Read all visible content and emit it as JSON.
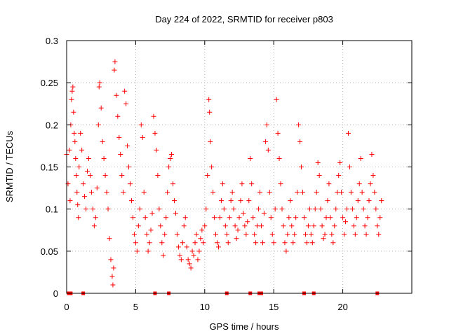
{
  "chart_data": {
    "type": "scatter",
    "title": "Day 224 of 2022, SRMTID for receiver p803",
    "xlabel": "GPS time / hours",
    "ylabel": "SRMTID / TECUs",
    "xlim": [
      0,
      25
    ],
    "ylim": [
      0,
      0.3
    ],
    "xticks": [
      0,
      5,
      10,
      15,
      20
    ],
    "xtick_labels": [
      "0",
      "5",
      "10",
      "15",
      "20"
    ],
    "yticks": [
      0,
      0.05,
      0.1,
      0.15,
      0.2,
      0.25,
      0.3
    ],
    "ytick_labels": [
      "0",
      "0.05",
      "0.1",
      "0.15",
      "0.2",
      "0.25",
      "0.3"
    ],
    "grid": true,
    "marker": "+",
    "series_color": "#ff0000",
    "series": [
      {
        "name": "SRMTID",
        "points": [
          [
            0.0,
            0.165
          ],
          [
            0.1,
            0.13
          ],
          [
            0.2,
            0.17
          ],
          [
            0.25,
            0.11
          ],
          [
            0.3,
            0.2
          ],
          [
            0.35,
            0.23
          ],
          [
            0.4,
            0.24
          ],
          [
            0.45,
            0.245
          ],
          [
            0.5,
            0.215
          ],
          [
            0.55,
            0.19
          ],
          [
            0.6,
            0.18
          ],
          [
            0.65,
            0.16
          ],
          [
            0.7,
            0.14
          ],
          [
            0.75,
            0.12
          ],
          [
            0.8,
            0.105
          ],
          [
            0.85,
            0.09
          ],
          [
            0.9,
            0.15
          ],
          [
            1.0,
            0.19
          ],
          [
            1.1,
            0.17
          ],
          [
            1.2,
            0.13
          ],
          [
            1.3,
            0.115
          ],
          [
            1.4,
            0.1
          ],
          [
            1.5,
            0.145
          ],
          [
            1.6,
            0.16
          ],
          [
            1.7,
            0.14
          ],
          [
            1.8,
            0.12
          ],
          [
            1.9,
            0.1
          ],
          [
            2.0,
            0.08
          ],
          [
            2.1,
            0.09
          ],
          [
            2.2,
            0.125
          ],
          [
            2.3,
            0.2
          ],
          [
            2.35,
            0.245
          ],
          [
            2.4,
            0.25
          ],
          [
            2.5,
            0.22
          ],
          [
            2.6,
            0.18
          ],
          [
            2.7,
            0.16
          ],
          [
            2.8,
            0.14
          ],
          [
            2.9,
            0.12
          ],
          [
            3.0,
            0.1
          ],
          [
            3.1,
            0.065
          ],
          [
            3.2,
            0.04
          ],
          [
            3.3,
            0.02
          ],
          [
            3.35,
            0.01
          ],
          [
            3.4,
            0.03
          ],
          [
            3.45,
            0.265
          ],
          [
            3.5,
            0.275
          ],
          [
            3.6,
            0.235
          ],
          [
            3.7,
            0.21
          ],
          [
            3.8,
            0.185
          ],
          [
            3.9,
            0.165
          ],
          [
            4.0,
            0.14
          ],
          [
            4.1,
            0.12
          ],
          [
            4.2,
            0.24
          ],
          [
            4.3,
            0.225
          ],
          [
            4.4,
            0.175
          ],
          [
            4.5,
            0.15
          ],
          [
            4.6,
            0.13
          ],
          [
            4.7,
            0.11
          ],
          [
            4.8,
            0.09
          ],
          [
            4.9,
            0.07
          ],
          [
            5.0,
            0.06
          ],
          [
            5.1,
            0.05
          ],
          [
            5.2,
            0.08
          ],
          [
            5.3,
            0.1
          ],
          [
            5.4,
            0.2
          ],
          [
            5.5,
            0.185
          ],
          [
            5.6,
            0.12
          ],
          [
            5.7,
            0.09
          ],
          [
            5.8,
            0.07
          ],
          [
            5.9,
            0.05
          ],
          [
            6.0,
            0.06
          ],
          [
            6.1,
            0.075
          ],
          [
            6.2,
            0.095
          ],
          [
            6.3,
            0.21
          ],
          [
            6.4,
            0.19
          ],
          [
            6.5,
            0.17
          ],
          [
            6.6,
            0.14
          ],
          [
            6.7,
            0.1
          ],
          [
            6.8,
            0.08
          ],
          [
            6.9,
            0.06
          ],
          [
            7.0,
            0.045
          ],
          [
            7.1,
            0.07
          ],
          [
            7.2,
            0.09
          ],
          [
            7.3,
            0.12
          ],
          [
            7.4,
            0.15
          ],
          [
            7.5,
            0.16
          ],
          [
            7.6,
            0.165
          ],
          [
            7.7,
            0.13
          ],
          [
            7.8,
            0.11
          ],
          [
            7.9,
            0.095
          ],
          [
            8.0,
            0.07
          ],
          [
            8.1,
            0.055
          ],
          [
            8.2,
            0.045
          ],
          [
            8.3,
            0.04
          ],
          [
            8.4,
            0.06
          ],
          [
            8.5,
            0.08
          ],
          [
            8.6,
            0.09
          ],
          [
            8.7,
            0.055
          ],
          [
            8.8,
            0.04
          ],
          [
            8.9,
            0.035
          ],
          [
            9.0,
            0.03
          ],
          [
            9.1,
            0.05
          ],
          [
            9.2,
            0.045
          ],
          [
            9.3,
            0.06
          ],
          [
            9.4,
            0.07
          ],
          [
            9.5,
            0.04
          ],
          [
            9.6,
            0.05
          ],
          [
            9.7,
            0.065
          ],
          [
            9.8,
            0.075
          ],
          [
            9.9,
            0.06
          ],
          [
            10.0,
            0.08
          ],
          [
            10.1,
            0.1
          ],
          [
            10.2,
            0.14
          ],
          [
            10.3,
            0.23
          ],
          [
            10.35,
            0.215
          ],
          [
            10.4,
            0.18
          ],
          [
            10.5,
            0.15
          ],
          [
            10.6,
            0.12
          ],
          [
            10.7,
            0.09
          ],
          [
            10.8,
            0.07
          ],
          [
            10.9,
            0.06
          ],
          [
            11.0,
            0.055
          ],
          [
            11.1,
            0.09
          ],
          [
            11.2,
            0.11
          ],
          [
            11.3,
            0.13
          ],
          [
            11.4,
            0.1
          ],
          [
            11.5,
            0.08
          ],
          [
            11.6,
            0.07
          ],
          [
            11.7,
            0.06
          ],
          [
            11.8,
            0.09
          ],
          [
            11.9,
            0.11
          ],
          [
            12.0,
            0.12
          ],
          [
            12.1,
            0.1
          ],
          [
            12.2,
            0.08
          ],
          [
            12.3,
            0.065
          ],
          [
            12.4,
            0.075
          ],
          [
            12.5,
            0.09
          ],
          [
            12.6,
            0.11
          ],
          [
            12.7,
            0.13
          ],
          [
            12.8,
            0.095
          ],
          [
            12.9,
            0.08
          ],
          [
            13.0,
            0.07
          ],
          [
            13.1,
            0.085
          ],
          [
            13.2,
            0.11
          ],
          [
            13.3,
            0.16
          ],
          [
            13.4,
            0.13
          ],
          [
            13.5,
            0.09
          ],
          [
            13.6,
            0.07
          ],
          [
            13.7,
            0.06
          ],
          [
            13.8,
            0.08
          ],
          [
            13.9,
            0.1
          ],
          [
            14.0,
            0.12
          ],
          [
            14.1,
            0.08
          ],
          [
            14.2,
            0.06
          ],
          [
            14.3,
            0.095
          ],
          [
            14.4,
            0.18
          ],
          [
            14.5,
            0.2
          ],
          [
            14.6,
            0.17
          ],
          [
            14.7,
            0.12
          ],
          [
            14.8,
            0.09
          ],
          [
            14.9,
            0.07
          ],
          [
            15.0,
            0.06
          ],
          [
            15.1,
            0.1
          ],
          [
            15.2,
            0.23
          ],
          [
            15.3,
            0.19
          ],
          [
            15.4,
            0.16
          ],
          [
            15.5,
            0.13
          ],
          [
            15.6,
            0.1
          ],
          [
            15.7,
            0.08
          ],
          [
            15.8,
            0.06
          ],
          [
            15.9,
            0.05
          ],
          [
            16.0,
            0.07
          ],
          [
            16.1,
            0.09
          ],
          [
            16.2,
            0.11
          ],
          [
            16.3,
            0.08
          ],
          [
            16.4,
            0.06
          ],
          [
            16.5,
            0.07
          ],
          [
            16.6,
            0.09
          ],
          [
            16.7,
            0.12
          ],
          [
            16.8,
            0.2
          ],
          [
            16.9,
            0.18
          ],
          [
            17.0,
            0.15
          ],
          [
            17.1,
            0.12
          ],
          [
            17.2,
            0.09
          ],
          [
            17.3,
            0.07
          ],
          [
            17.4,
            0.06
          ],
          [
            17.5,
            0.08
          ],
          [
            17.6,
            0.1
          ],
          [
            17.7,
            0.07
          ],
          [
            17.8,
            0.06
          ],
          [
            17.9,
            0.08
          ],
          [
            18.0,
            0.1
          ],
          [
            18.1,
            0.12
          ],
          [
            18.2,
            0.155
          ],
          [
            18.3,
            0.14
          ],
          [
            18.4,
            0.1
          ],
          [
            18.5,
            0.08
          ],
          [
            18.6,
            0.065
          ],
          [
            18.7,
            0.07
          ],
          [
            18.8,
            0.09
          ],
          [
            18.9,
            0.11
          ],
          [
            19.0,
            0.13
          ],
          [
            19.1,
            0.09
          ],
          [
            19.2,
            0.07
          ],
          [
            19.3,
            0.06
          ],
          [
            19.4,
            0.08
          ],
          [
            19.5,
            0.1
          ],
          [
            19.6,
            0.12
          ],
          [
            19.7,
            0.14
          ],
          [
            19.8,
            0.155
          ],
          [
            19.9,
            0.12
          ],
          [
            20.0,
            0.09
          ],
          [
            20.1,
            0.07
          ],
          [
            20.2,
            0.085
          ],
          [
            20.3,
            0.1
          ],
          [
            20.4,
            0.19
          ],
          [
            20.5,
            0.15
          ],
          [
            20.6,
            0.12
          ],
          [
            20.7,
            0.1
          ],
          [
            20.8,
            0.08
          ],
          [
            20.9,
            0.07
          ],
          [
            21.0,
            0.09
          ],
          [
            21.1,
            0.11
          ],
          [
            21.2,
            0.13
          ],
          [
            21.3,
            0.16
          ],
          [
            21.4,
            0.12
          ],
          [
            21.5,
            0.1
          ],
          [
            21.6,
            0.08
          ],
          [
            21.7,
            0.07
          ],
          [
            21.8,
            0.09
          ],
          [
            21.9,
            0.11
          ],
          [
            22.0,
            0.13
          ],
          [
            22.1,
            0.165
          ],
          [
            22.2,
            0.14
          ],
          [
            22.3,
            0.12
          ],
          [
            22.4,
            0.1
          ],
          [
            22.5,
            0.08
          ],
          [
            22.6,
            0.07
          ],
          [
            22.7,
            0.09
          ],
          [
            22.8,
            0.11
          ]
        ]
      }
    ],
    "axis_markers_x": [
      0.15,
      0.3,
      1.2,
      6.4,
      7.4,
      11.6,
      13.3,
      13.95,
      14.1,
      17.2,
      17.9,
      22.5
    ]
  }
}
